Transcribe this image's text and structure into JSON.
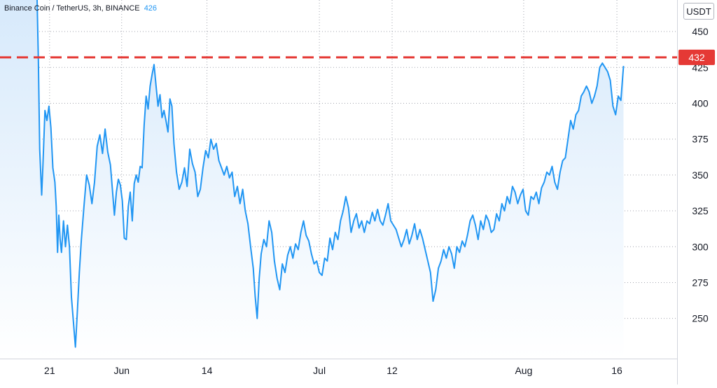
{
  "header": {
    "symbol": "Binance Coin / TetherUS, 3h, BINANCE",
    "last_value": "426"
  },
  "axis_unit": "USDT",
  "colors": {
    "line": "#2196f3",
    "area_top": "#d6e9fb",
    "grid": "#a3a6af",
    "level_line": "#e53935",
    "level_badge": "#e53935"
  },
  "chart_data": {
    "type": "area",
    "ylim": [
      222,
      472
    ],
    "yticks": [
      250,
      275,
      300,
      325,
      350,
      375,
      400,
      425,
      450
    ],
    "xticks": [
      {
        "label": "21",
        "x": 2.0
      },
      {
        "label": "Jun",
        "x": 12.9
      },
      {
        "label": "14",
        "x": 25.8
      },
      {
        "label": "Jul",
        "x": 42.8
      },
      {
        "label": "12",
        "x": 53.8
      },
      {
        "label": "Aug",
        "x": 73.7
      },
      {
        "label": "16",
        "x": 87.8
      }
    ],
    "xlim": [
      -5.5,
      96.9
    ],
    "horizontal_level": {
      "value": 432,
      "label": "432"
    },
    "series": [
      {
        "points": [
          [
            -5.5,
            478
          ],
          [
            0.1,
            478
          ],
          [
            0.3,
            430
          ],
          [
            0.5,
            368
          ],
          [
            0.8,
            336
          ],
          [
            1.0,
            358
          ],
          [
            1.3,
            395
          ],
          [
            1.6,
            388
          ],
          [
            1.9,
            398
          ],
          [
            2.2,
            383
          ],
          [
            2.5,
            355
          ],
          [
            2.8,
            345
          ],
          [
            3.0,
            328
          ],
          [
            3.2,
            296
          ],
          [
            3.4,
            322
          ],
          [
            3.6,
            305
          ],
          [
            3.8,
            296
          ],
          [
            4.1,
            318
          ],
          [
            4.4,
            300
          ],
          [
            4.7,
            315
          ],
          [
            5.0,
            300
          ],
          [
            5.3,
            265
          ],
          [
            5.6,
            248
          ],
          [
            5.9,
            230
          ],
          [
            6.2,
            255
          ],
          [
            6.5,
            282
          ],
          [
            6.8,
            305
          ],
          [
            7.2,
            328
          ],
          [
            7.6,
            350
          ],
          [
            8.0,
            343
          ],
          [
            8.4,
            330
          ],
          [
            8.8,
            345
          ],
          [
            9.2,
            370
          ],
          [
            9.6,
            378
          ],
          [
            10.0,
            365
          ],
          [
            10.4,
            382
          ],
          [
            10.8,
            366
          ],
          [
            11.2,
            357
          ],
          [
            11.5,
            340
          ],
          [
            11.8,
            322
          ],
          [
            12.1,
            338
          ],
          [
            12.4,
            347
          ],
          [
            12.7,
            343
          ],
          [
            13.0,
            332
          ],
          [
            13.3,
            306
          ],
          [
            13.6,
            305
          ],
          [
            13.9,
            328
          ],
          [
            14.2,
            338
          ],
          [
            14.5,
            318
          ],
          [
            14.8,
            344
          ],
          [
            15.1,
            350
          ],
          [
            15.4,
            345
          ],
          [
            15.7,
            356
          ],
          [
            16.0,
            355
          ],
          [
            16.3,
            385
          ],
          [
            16.6,
            405
          ],
          [
            16.9,
            396
          ],
          [
            17.2,
            412
          ],
          [
            17.5,
            420
          ],
          [
            17.8,
            427
          ],
          [
            18.1,
            412
          ],
          [
            18.4,
            398
          ],
          [
            18.7,
            406
          ],
          [
            19.0,
            390
          ],
          [
            19.3,
            395
          ],
          [
            19.6,
            388
          ],
          [
            19.9,
            380
          ],
          [
            20.2,
            403
          ],
          [
            20.5,
            398
          ],
          [
            20.8,
            372
          ],
          [
            21.2,
            352
          ],
          [
            21.6,
            340
          ],
          [
            22.0,
            345
          ],
          [
            22.4,
            355
          ],
          [
            22.8,
            342
          ],
          [
            23.2,
            368
          ],
          [
            23.6,
            358
          ],
          [
            24.0,
            352
          ],
          [
            24.4,
            335
          ],
          [
            24.8,
            340
          ],
          [
            25.2,
            355
          ],
          [
            25.6,
            367
          ],
          [
            26.0,
            362
          ],
          [
            26.4,
            375
          ],
          [
            26.8,
            368
          ],
          [
            27.2,
            372
          ],
          [
            27.6,
            360
          ],
          [
            28.0,
            355
          ],
          [
            28.4,
            350
          ],
          [
            28.8,
            356
          ],
          [
            29.2,
            348
          ],
          [
            29.6,
            352
          ],
          [
            30.0,
            335
          ],
          [
            30.4,
            342
          ],
          [
            30.8,
            330
          ],
          [
            31.2,
            340
          ],
          [
            31.6,
            325
          ],
          [
            32.0,
            316
          ],
          [
            32.4,
            300
          ],
          [
            32.8,
            285
          ],
          [
            33.1,
            265
          ],
          [
            33.4,
            250
          ],
          [
            33.7,
            278
          ],
          [
            34.0,
            295
          ],
          [
            34.4,
            305
          ],
          [
            34.8,
            300
          ],
          [
            35.2,
            318
          ],
          [
            35.6,
            310
          ],
          [
            36.0,
            290
          ],
          [
            36.4,
            278
          ],
          [
            36.8,
            270
          ],
          [
            37.2,
            288
          ],
          [
            37.6,
            282
          ],
          [
            38.0,
            294
          ],
          [
            38.4,
            300
          ],
          [
            38.8,
            292
          ],
          [
            39.2,
            302
          ],
          [
            39.6,
            298
          ],
          [
            40.0,
            310
          ],
          [
            40.4,
            318
          ],
          [
            40.8,
            308
          ],
          [
            41.2,
            304
          ],
          [
            41.6,
            295
          ],
          [
            42.0,
            288
          ],
          [
            42.4,
            290
          ],
          [
            42.8,
            282
          ],
          [
            43.2,
            280
          ],
          [
            43.6,
            292
          ],
          [
            44.0,
            290
          ],
          [
            44.4,
            306
          ],
          [
            44.8,
            298
          ],
          [
            45.2,
            310
          ],
          [
            45.6,
            305
          ],
          [
            46.0,
            318
          ],
          [
            46.4,
            325
          ],
          [
            46.8,
            335
          ],
          [
            47.2,
            327
          ],
          [
            47.6,
            310
          ],
          [
            48.0,
            318
          ],
          [
            48.4,
            323
          ],
          [
            48.8,
            313
          ],
          [
            49.2,
            318
          ],
          [
            49.6,
            310
          ],
          [
            50.0,
            318
          ],
          [
            50.4,
            316
          ],
          [
            50.8,
            324
          ],
          [
            51.2,
            318
          ],
          [
            51.6,
            326
          ],
          [
            52.0,
            318
          ],
          [
            52.4,
            315
          ],
          [
            52.8,
            322
          ],
          [
            53.2,
            330
          ],
          [
            53.6,
            318
          ],
          [
            54.0,
            315
          ],
          [
            54.4,
            312
          ],
          [
            54.8,
            306
          ],
          [
            55.2,
            300
          ],
          [
            55.6,
            305
          ],
          [
            56.0,
            312
          ],
          [
            56.4,
            302
          ],
          [
            56.8,
            308
          ],
          [
            57.2,
            316
          ],
          [
            57.6,
            305
          ],
          [
            58.0,
            312
          ],
          [
            58.4,
            306
          ],
          [
            58.8,
            298
          ],
          [
            59.2,
            290
          ],
          [
            59.6,
            282
          ],
          [
            60.0,
            262
          ],
          [
            60.4,
            270
          ],
          [
            60.8,
            285
          ],
          [
            61.2,
            290
          ],
          [
            61.6,
            298
          ],
          [
            62.0,
            292
          ],
          [
            62.4,
            300
          ],
          [
            62.8,
            295
          ],
          [
            63.2,
            285
          ],
          [
            63.6,
            300
          ],
          [
            64.0,
            296
          ],
          [
            64.4,
            304
          ],
          [
            64.8,
            300
          ],
          [
            65.2,
            308
          ],
          [
            65.6,
            318
          ],
          [
            66.0,
            322
          ],
          [
            66.4,
            315
          ],
          [
            66.8,
            305
          ],
          [
            67.2,
            318
          ],
          [
            67.6,
            312
          ],
          [
            68.0,
            322
          ],
          [
            68.4,
            318
          ],
          [
            68.8,
            310
          ],
          [
            69.2,
            312
          ],
          [
            69.6,
            323
          ],
          [
            70.0,
            318
          ],
          [
            70.4,
            330
          ],
          [
            70.8,
            325
          ],
          [
            71.2,
            335
          ],
          [
            71.6,
            330
          ],
          [
            72.0,
            342
          ],
          [
            72.4,
            338
          ],
          [
            72.8,
            330
          ],
          [
            73.2,
            336
          ],
          [
            73.6,
            340
          ],
          [
            74.0,
            325
          ],
          [
            74.4,
            322
          ],
          [
            74.8,
            335
          ],
          [
            75.2,
            333
          ],
          [
            75.6,
            338
          ],
          [
            76.0,
            330
          ],
          [
            76.4,
            341
          ],
          [
            76.8,
            345
          ],
          [
            77.2,
            352
          ],
          [
            77.6,
            350
          ],
          [
            78.0,
            356
          ],
          [
            78.4,
            345
          ],
          [
            78.8,
            340
          ],
          [
            79.2,
            352
          ],
          [
            79.6,
            360
          ],
          [
            80.0,
            362
          ],
          [
            80.4,
            375
          ],
          [
            80.8,
            388
          ],
          [
            81.2,
            382
          ],
          [
            81.6,
            392
          ],
          [
            82.0,
            395
          ],
          [
            82.4,
            405
          ],
          [
            82.8,
            408
          ],
          [
            83.2,
            412
          ],
          [
            83.6,
            408
          ],
          [
            84.0,
            400
          ],
          [
            84.4,
            405
          ],
          [
            84.8,
            412
          ],
          [
            85.2,
            425
          ],
          [
            85.6,
            428
          ],
          [
            86.0,
            425
          ],
          [
            86.4,
            422
          ],
          [
            86.8,
            416
          ],
          [
            87.2,
            398
          ],
          [
            87.6,
            392
          ],
          [
            88.0,
            405
          ],
          [
            88.4,
            402
          ],
          [
            88.8,
            426
          ]
        ]
      }
    ]
  }
}
